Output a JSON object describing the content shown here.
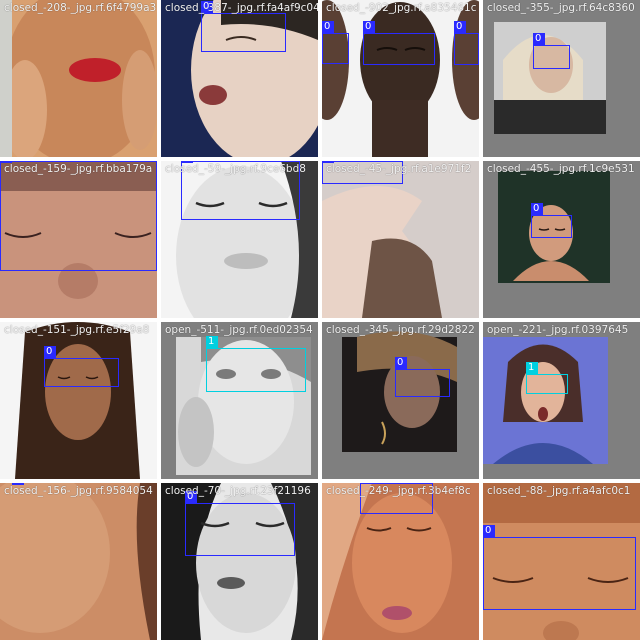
{
  "colors": {
    "class0": "#2a2aff",
    "class1": "#00d0e0"
  },
  "tiles": [
    {
      "filename": "closed_-208-_jpg.rf.6f4799a3"
    },
    {
      "filename": "closed_-387-_jpg.rf.fa4af9c04"
    },
    {
      "filename": "closed_-902_jpg.rf.a835461c"
    },
    {
      "filename": "closed_-355-_jpg.rf.64c8360"
    },
    {
      "filename": "closed_-159-_jpg.rf.bba179a"
    },
    {
      "filename": "closed_-59-_jpg.rf.9ce6bd8"
    },
    {
      "filename": "closed_-45-_jpg.rf.a1e971f2"
    },
    {
      "filename": "closed_-455-_jpg.rf.1c9e531"
    },
    {
      "filename": "closed_-151-_jpg.rf.e5f29a8"
    },
    {
      "filename": "open_-511-_jpg.rf.0ed02354"
    },
    {
      "filename": "closed_-345-_jpg.rf.29d2822"
    },
    {
      "filename": "open_-221-_jpg.rf.0397645"
    },
    {
      "filename": "closed_-156-_jpg.rf.9584054"
    },
    {
      "filename": "closed_-70-_jpg.rf.23f21196"
    },
    {
      "filename": "closed_-249-_jpg.rf.3b4ef8c"
    },
    {
      "filename": "closed_-88-_jpg.rf.a4afc0c1"
    }
  ],
  "boxes": [
    {
      "cls": "0"
    },
    {
      "cls": "0"
    },
    {
      "cls": "0"
    },
    {
      "cls": "0"
    },
    {
      "cls": "0"
    },
    {
      "cls": "0"
    },
    {
      "cls": "0"
    },
    {
      "cls": "0"
    },
    {
      "cls": "0"
    },
    {
      "cls": "0"
    },
    {
      "cls": "1"
    },
    {
      "cls": "0"
    },
    {
      "cls": "1"
    },
    {
      "cls": "0"
    },
    {
      "cls": "0"
    },
    {
      "cls": "0"
    },
    {
      "cls": "0"
    },
    {
      "cls": "0"
    }
  ]
}
